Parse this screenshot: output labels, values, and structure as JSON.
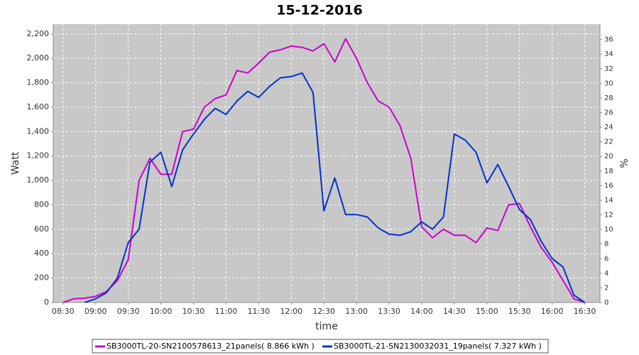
{
  "chart_data": {
    "type": "line",
    "title": "15-12-2016",
    "xlabel": "time",
    "ylabel": "Watt",
    "y2label": "%",
    "x": [
      "08:30",
      "08:40",
      "08:50",
      "09:00",
      "09:10",
      "09:20",
      "09:30",
      "09:40",
      "09:50",
      "10:00",
      "10:10",
      "10:20",
      "10:30",
      "10:40",
      "10:50",
      "11:00",
      "11:10",
      "11:20",
      "11:30",
      "11:40",
      "11:50",
      "12:00",
      "12:10",
      "12:20",
      "12:30",
      "12:40",
      "12:50",
      "13:00",
      "13:10",
      "13:20",
      "13:30",
      "13:40",
      "13:50",
      "14:00",
      "14:10",
      "14:20",
      "14:30",
      "14:40",
      "14:50",
      "15:00",
      "15:10",
      "15:20",
      "15:30",
      "15:40",
      "15:50",
      "16:00",
      "16:10",
      "16:20",
      "16:30"
    ],
    "series": [
      {
        "name": "SB3000TL-20-SN2100578613_21panels( 8.866 kWh )",
        "color": "#cc00cc",
        "values": [
          0,
          30,
          35,
          50,
          90,
          180,
          350,
          1000,
          1180,
          1050,
          1050,
          1400,
          1420,
          1600,
          1670,
          1700,
          1900,
          1880,
          1960,
          2050,
          2070,
          2100,
          2090,
          2060,
          2120,
          1970,
          2160,
          2000,
          1800,
          1650,
          1600,
          1450,
          1180,
          620,
          530,
          600,
          550,
          550,
          490,
          610,
          590,
          800,
          810,
          620,
          450,
          330,
          180,
          30,
          0
        ]
      },
      {
        "name": "SB3000TL-21-SN2130032031_19panels( 7.327 kWh )",
        "color": "#0033cc",
        "values": [
          null,
          null,
          0,
          30,
          80,
          200,
          490,
          600,
          1150,
          1230,
          950,
          1250,
          1380,
          1500,
          1590,
          1540,
          1650,
          1730,
          1680,
          1770,
          1840,
          1850,
          1880,
          1720,
          750,
          1020,
          720,
          720,
          700,
          610,
          560,
          550,
          580,
          660,
          600,
          700,
          1380,
          1330,
          1230,
          980,
          1130,
          950,
          760,
          680,
          500,
          360,
          290,
          60,
          0
        ]
      }
    ],
    "xlim": [
      "08:21",
      "16:44"
    ],
    "xticks": [
      "08:30",
      "09:00",
      "09:30",
      "10:00",
      "10:30",
      "11:00",
      "11:30",
      "12:00",
      "12:30",
      "13:00",
      "13:30",
      "14:00",
      "14:30",
      "15:00",
      "15:30",
      "16:00",
      "16:30"
    ],
    "ylim": [
      0,
      2280
    ],
    "yticks": [
      0,
      200,
      400,
      600,
      800,
      {
        "value": 1000,
        "label": "1,000"
      },
      {
        "value": 1200,
        "label": "1,200"
      },
      {
        "value": 1400,
        "label": "1,400"
      },
      {
        "value": 1600,
        "label": "1,600"
      },
      {
        "value": 1800,
        "label": "1,800"
      },
      {
        "value": 2000,
        "label": "2,000"
      },
      {
        "value": 2200,
        "label": "2,200"
      }
    ],
    "y2lim": [
      0,
      38.1
    ],
    "y2ticks": [
      0,
      2,
      4,
      6,
      8,
      10,
      12,
      14,
      16,
      18,
      20,
      22,
      24,
      26,
      28,
      30,
      32,
      34,
      36
    ],
    "grid": true
  }
}
